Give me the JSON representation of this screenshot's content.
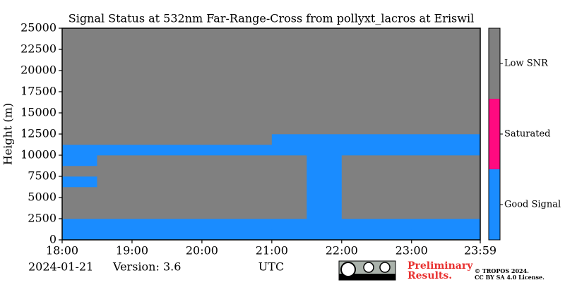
{
  "chart_data": {
    "type": "heatmap",
    "title": "Signal Status at 532nm Far-Range-Cross from pollyxt_lacros at Eriswil",
    "y_label": "Height (m)",
    "x_label": "UTC",
    "date": "2024-01-21",
    "version": "Version: 3.6",
    "notice": [
      "Preliminary",
      "Results."
    ],
    "notice_color": "#e8302f",
    "copyright": [
      "© TROPOS 2024.",
      "CC BY SA 4.0 License."
    ],
    "xlim": [
      18,
      23.983
    ],
    "xticks": [
      {
        "value": 18,
        "label": "18:00"
      },
      {
        "value": 19,
        "label": "19:00"
      },
      {
        "value": 20,
        "label": "20:00"
      },
      {
        "value": 21,
        "label": "21:00"
      },
      {
        "value": 22,
        "label": "22:00"
      },
      {
        "value": 23,
        "label": "23:00"
      },
      {
        "value": 23.983,
        "label": "23:59"
      }
    ],
    "ylim": [
      0,
      25000
    ],
    "yticks": [
      0,
      2500,
      5000,
      7500,
      10000,
      12500,
      15000,
      17500,
      20000,
      22500,
      25000
    ],
    "colorbar": [
      {
        "label": "Good Signal",
        "color": "#1a8cff"
      },
      {
        "label": "Saturated",
        "color": "#ff0a80"
      },
      {
        "label": "Low SNR",
        "color": "#808080"
      }
    ],
    "x_bins": [
      18,
      18.5,
      19,
      19.5,
      20,
      20.5,
      21,
      21.5,
      22,
      22.5,
      23,
      23.5,
      23.983
    ],
    "y_bins": [
      0,
      1250,
      2500,
      3750,
      5000,
      6250,
      7500,
      8750,
      10000,
      11250,
      12500,
      13750,
      15000,
      16250,
      17500,
      18750,
      20000,
      21250,
      22500,
      23750,
      25000
    ],
    "z": [
      [
        0,
        0,
        0,
        0,
        0,
        0,
        0,
        0,
        0,
        0,
        0,
        0
      ],
      [
        0,
        0,
        0,
        0,
        0,
        0,
        0,
        0,
        0,
        0,
        0,
        0
      ],
      [
        2,
        2,
        2,
        2,
        2,
        2,
        2,
        0,
        2,
        2,
        2,
        2
      ],
      [
        2,
        2,
        2,
        2,
        2,
        2,
        2,
        0,
        2,
        2,
        2,
        2
      ],
      [
        2,
        2,
        2,
        2,
        2,
        2,
        2,
        0,
        2,
        2,
        2,
        2
      ],
      [
        0,
        2,
        2,
        2,
        2,
        2,
        2,
        0,
        2,
        2,
        2,
        2
      ],
      [
        2,
        2,
        2,
        2,
        2,
        2,
        2,
        0,
        2,
        2,
        2,
        2
      ],
      [
        0,
        2,
        2,
        2,
        2,
        2,
        2,
        0,
        2,
        2,
        2,
        2
      ],
      [
        0,
        0,
        0,
        0,
        0,
        0,
        0,
        0,
        0,
        0,
        0,
        0
      ],
      [
        2,
        2,
        2,
        2,
        2,
        2,
        0,
        0,
        0,
        0,
        0,
        0
      ],
      [
        2,
        2,
        2,
        2,
        2,
        2,
        2,
        2,
        2,
        2,
        2,
        2
      ],
      [
        2,
        2,
        2,
        2,
        2,
        2,
        2,
        2,
        2,
        2,
        2,
        2
      ],
      [
        2,
        2,
        2,
        2,
        2,
        2,
        2,
        2,
        2,
        2,
        2,
        2
      ],
      [
        2,
        2,
        2,
        2,
        2,
        2,
        2,
        2,
        2,
        2,
        2,
        2
      ],
      [
        2,
        2,
        2,
        2,
        2,
        2,
        2,
        2,
        2,
        2,
        2,
        2
      ],
      [
        2,
        2,
        2,
        2,
        2,
        2,
        2,
        2,
        2,
        2,
        2,
        2
      ],
      [
        2,
        2,
        2,
        2,
        2,
        2,
        2,
        2,
        2,
        2,
        2,
        2
      ],
      [
        2,
        2,
        2,
        2,
        2,
        2,
        2,
        2,
        2,
        2,
        2,
        2
      ],
      [
        2,
        2,
        2,
        2,
        2,
        2,
        2,
        2,
        2,
        2,
        2,
        2
      ],
      [
        2,
        2,
        2,
        2,
        2,
        2,
        2,
        2,
        2,
        2,
        2,
        2
      ]
    ]
  }
}
